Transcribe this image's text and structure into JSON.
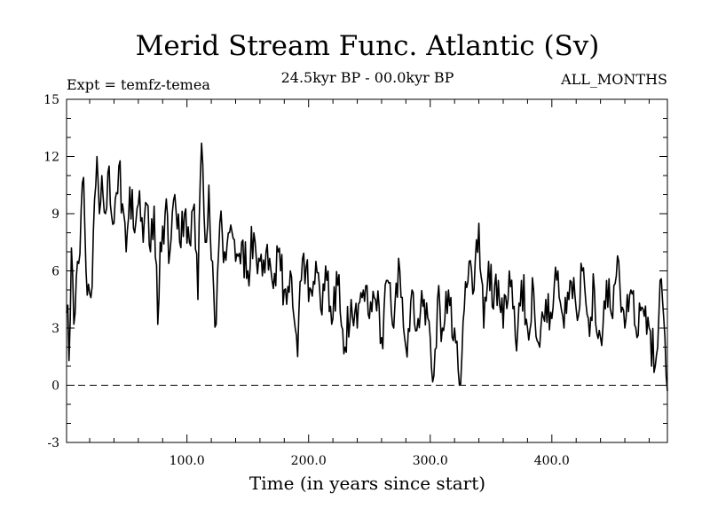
{
  "title": "Merid Stream Func. Atlantic (Sv)",
  "expt_label": "Expt = temfz-temea",
  "period_label": "24.5kyr BP - 00.0kyr BP",
  "months_label": "ALL_MONTHS",
  "colors": {
    "line": "#000000",
    "background": "#ffffff"
  },
  "chart_data": {
    "type": "line",
    "title": "Merid Stream Func. Atlantic (Sv)",
    "xlabel": "Time (in years since start)",
    "ylabel": "",
    "xlim": [
      1,
      495
    ],
    "ylim": [
      -3,
      15
    ],
    "xticks": [
      100,
      200,
      300,
      400
    ],
    "xtick_labels": [
      "100.0",
      "200.0",
      "300.0",
      "400.0"
    ],
    "yticks": [
      -3,
      0,
      3,
      6,
      9,
      12,
      15
    ],
    "ytick_labels": [
      "-3",
      "0",
      "3",
      "6",
      "9",
      "12",
      "15"
    ],
    "reference_line": {
      "y": 0,
      "style": "dashed"
    },
    "anchors": [
      [
        1,
        3.8
      ],
      [
        2,
        4.2
      ],
      [
        3,
        1.3
      ],
      [
        5,
        7.2
      ],
      [
        7,
        3.2
      ],
      [
        10,
        6.5
      ],
      [
        12,
        6.9
      ],
      [
        15,
        10.9
      ],
      [
        17,
        6.0
      ],
      [
        19,
        5.3
      ],
      [
        21,
        4.6
      ],
      [
        23,
        8.0
      ],
      [
        26,
        12.0
      ],
      [
        28,
        9.0
      ],
      [
        30,
        11.0
      ],
      [
        33,
        9.0
      ],
      [
        36,
        11.5
      ],
      [
        40,
        8.5
      ],
      [
        44,
        11.5
      ],
      [
        48,
        9.0
      ],
      [
        50,
        7.0
      ],
      [
        53,
        10.4
      ],
      [
        57,
        8.0
      ],
      [
        61,
        10.2
      ],
      [
        64,
        7.5
      ],
      [
        67,
        9.5
      ],
      [
        70,
        7.0
      ],
      [
        73,
        9.4
      ],
      [
        75,
        6.3
      ],
      [
        76,
        3.2
      ],
      [
        78,
        7.5
      ],
      [
        82,
        9.0
      ],
      [
        86,
        7.0
      ],
      [
        90,
        10.0
      ],
      [
        94,
        7.5
      ],
      [
        98,
        9.0
      ],
      [
        102,
        7.5
      ],
      [
        106,
        9.5
      ],
      [
        109,
        4.5
      ],
      [
        112,
        12.7
      ],
      [
        115,
        7.5
      ],
      [
        118,
        10.5
      ],
      [
        121,
        6.5
      ],
      [
        124,
        3.2
      ],
      [
        127,
        8.5
      ],
      [
        131,
        7.0
      ],
      [
        135,
        8.0
      ],
      [
        140,
        6.5
      ],
      [
        145,
        7.5
      ],
      [
        150,
        6.0
      ],
      [
        155,
        8.0
      ],
      [
        160,
        6.5
      ],
      [
        165,
        7.0
      ],
      [
        170,
        5.5
      ],
      [
        175,
        7.0
      ],
      [
        180,
        5.0
      ],
      [
        185,
        6.0
      ],
      [
        189,
        3.0
      ],
      [
        191,
        1.5
      ],
      [
        194,
        5.5
      ],
      [
        198,
        6.2
      ],
      [
        202,
        5.0
      ],
      [
        206,
        6.5
      ],
      [
        210,
        4.0
      ],
      [
        215,
        5.5
      ],
      [
        220,
        3.5
      ],
      [
        225,
        5.8
      ],
      [
        230,
        2.0
      ],
      [
        235,
        4.5
      ],
      [
        240,
        3.0
      ],
      [
        245,
        5.0
      ],
      [
        250,
        3.5
      ],
      [
        255,
        4.5
      ],
      [
        260,
        2.5
      ],
      [
        265,
        5.5
      ],
      [
        270,
        3.0
      ],
      [
        275,
        6.0
      ],
      [
        280,
        2.0
      ],
      [
        285,
        5.0
      ],
      [
        290,
        3.5
      ],
      [
        295,
        4.5
      ],
      [
        300,
        2.5
      ],
      [
        303,
        0.5
      ],
      [
        306,
        4.5
      ],
      [
        310,
        3.0
      ],
      [
        315,
        5.0
      ],
      [
        320,
        3.0
      ],
      [
        324,
        0.0
      ],
      [
        328,
        4.0
      ],
      [
        332,
        6.5
      ],
      [
        336,
        5.0
      ],
      [
        340,
        8.5
      ],
      [
        344,
        3.0
      ],
      [
        348,
        6.5
      ],
      [
        352,
        4.0
      ],
      [
        356,
        5.5
      ],
      [
        360,
        3.0
      ],
      [
        365,
        6.0
      ],
      [
        370,
        2.5
      ],
      [
        375,
        5.5
      ],
      [
        380,
        3.0
      ],
      [
        385,
        5.0
      ],
      [
        390,
        2.0
      ],
      [
        395,
        4.5
      ],
      [
        400,
        3.5
      ],
      [
        405,
        6.0
      ],
      [
        410,
        3.0
      ],
      [
        415,
        5.5
      ],
      [
        420,
        4.0
      ],
      [
        425,
        6.0
      ],
      [
        430,
        3.5
      ],
      [
        435,
        5.0
      ],
      [
        440,
        2.5
      ],
      [
        445,
        5.5
      ],
      [
        450,
        3.5
      ],
      [
        455,
        6.5
      ],
      [
        460,
        3.0
      ],
      [
        465,
        5.0
      ],
      [
        470,
        2.5
      ],
      [
        475,
        4.0
      ],
      [
        480,
        3.0
      ],
      [
        485,
        1.0
      ],
      [
        489,
        5.5
      ],
      [
        492,
        3.5
      ],
      [
        495,
        -0.3
      ]
    ]
  }
}
